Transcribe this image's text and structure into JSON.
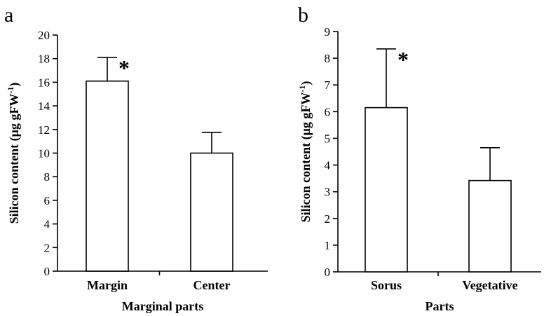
{
  "chart_data": [
    {
      "type": "bar",
      "panel_label": "a",
      "categories": [
        "Margin",
        "Center"
      ],
      "values": [
        16.1,
        10.0
      ],
      "error_plus": [
        2.0,
        1.75
      ],
      "significance": [
        "*",
        ""
      ],
      "xlabel": "Marginal parts",
      "ylabel_main": "Silicon content (μg gFW",
      "ylabel_sup": "-1",
      "ylabel_end": ")",
      "ylim": [
        0,
        20
      ],
      "yticks": [
        "0",
        "2",
        "4",
        "6",
        "8",
        "10",
        "12",
        "14",
        "16",
        "18",
        "20"
      ],
      "grid": false,
      "bar_color": "#ffffff"
    },
    {
      "type": "bar",
      "panel_label": "b",
      "categories": [
        "Sorus",
        "Vegetative"
      ],
      "values": [
        6.15,
        3.42
      ],
      "error_plus": [
        2.2,
        1.23
      ],
      "significance": [
        "*",
        ""
      ],
      "xlabel": "Parts",
      "ylabel_main": "Silicon content (μg gFW",
      "ylabel_sup": "-1",
      "ylabel_end": ")",
      "ylim": [
        0,
        9
      ],
      "yticks": [
        "0",
        "1",
        "2",
        "3",
        "4",
        "5",
        "6",
        "7",
        "8",
        "9"
      ],
      "grid": false,
      "bar_color": "#ffffff"
    }
  ]
}
